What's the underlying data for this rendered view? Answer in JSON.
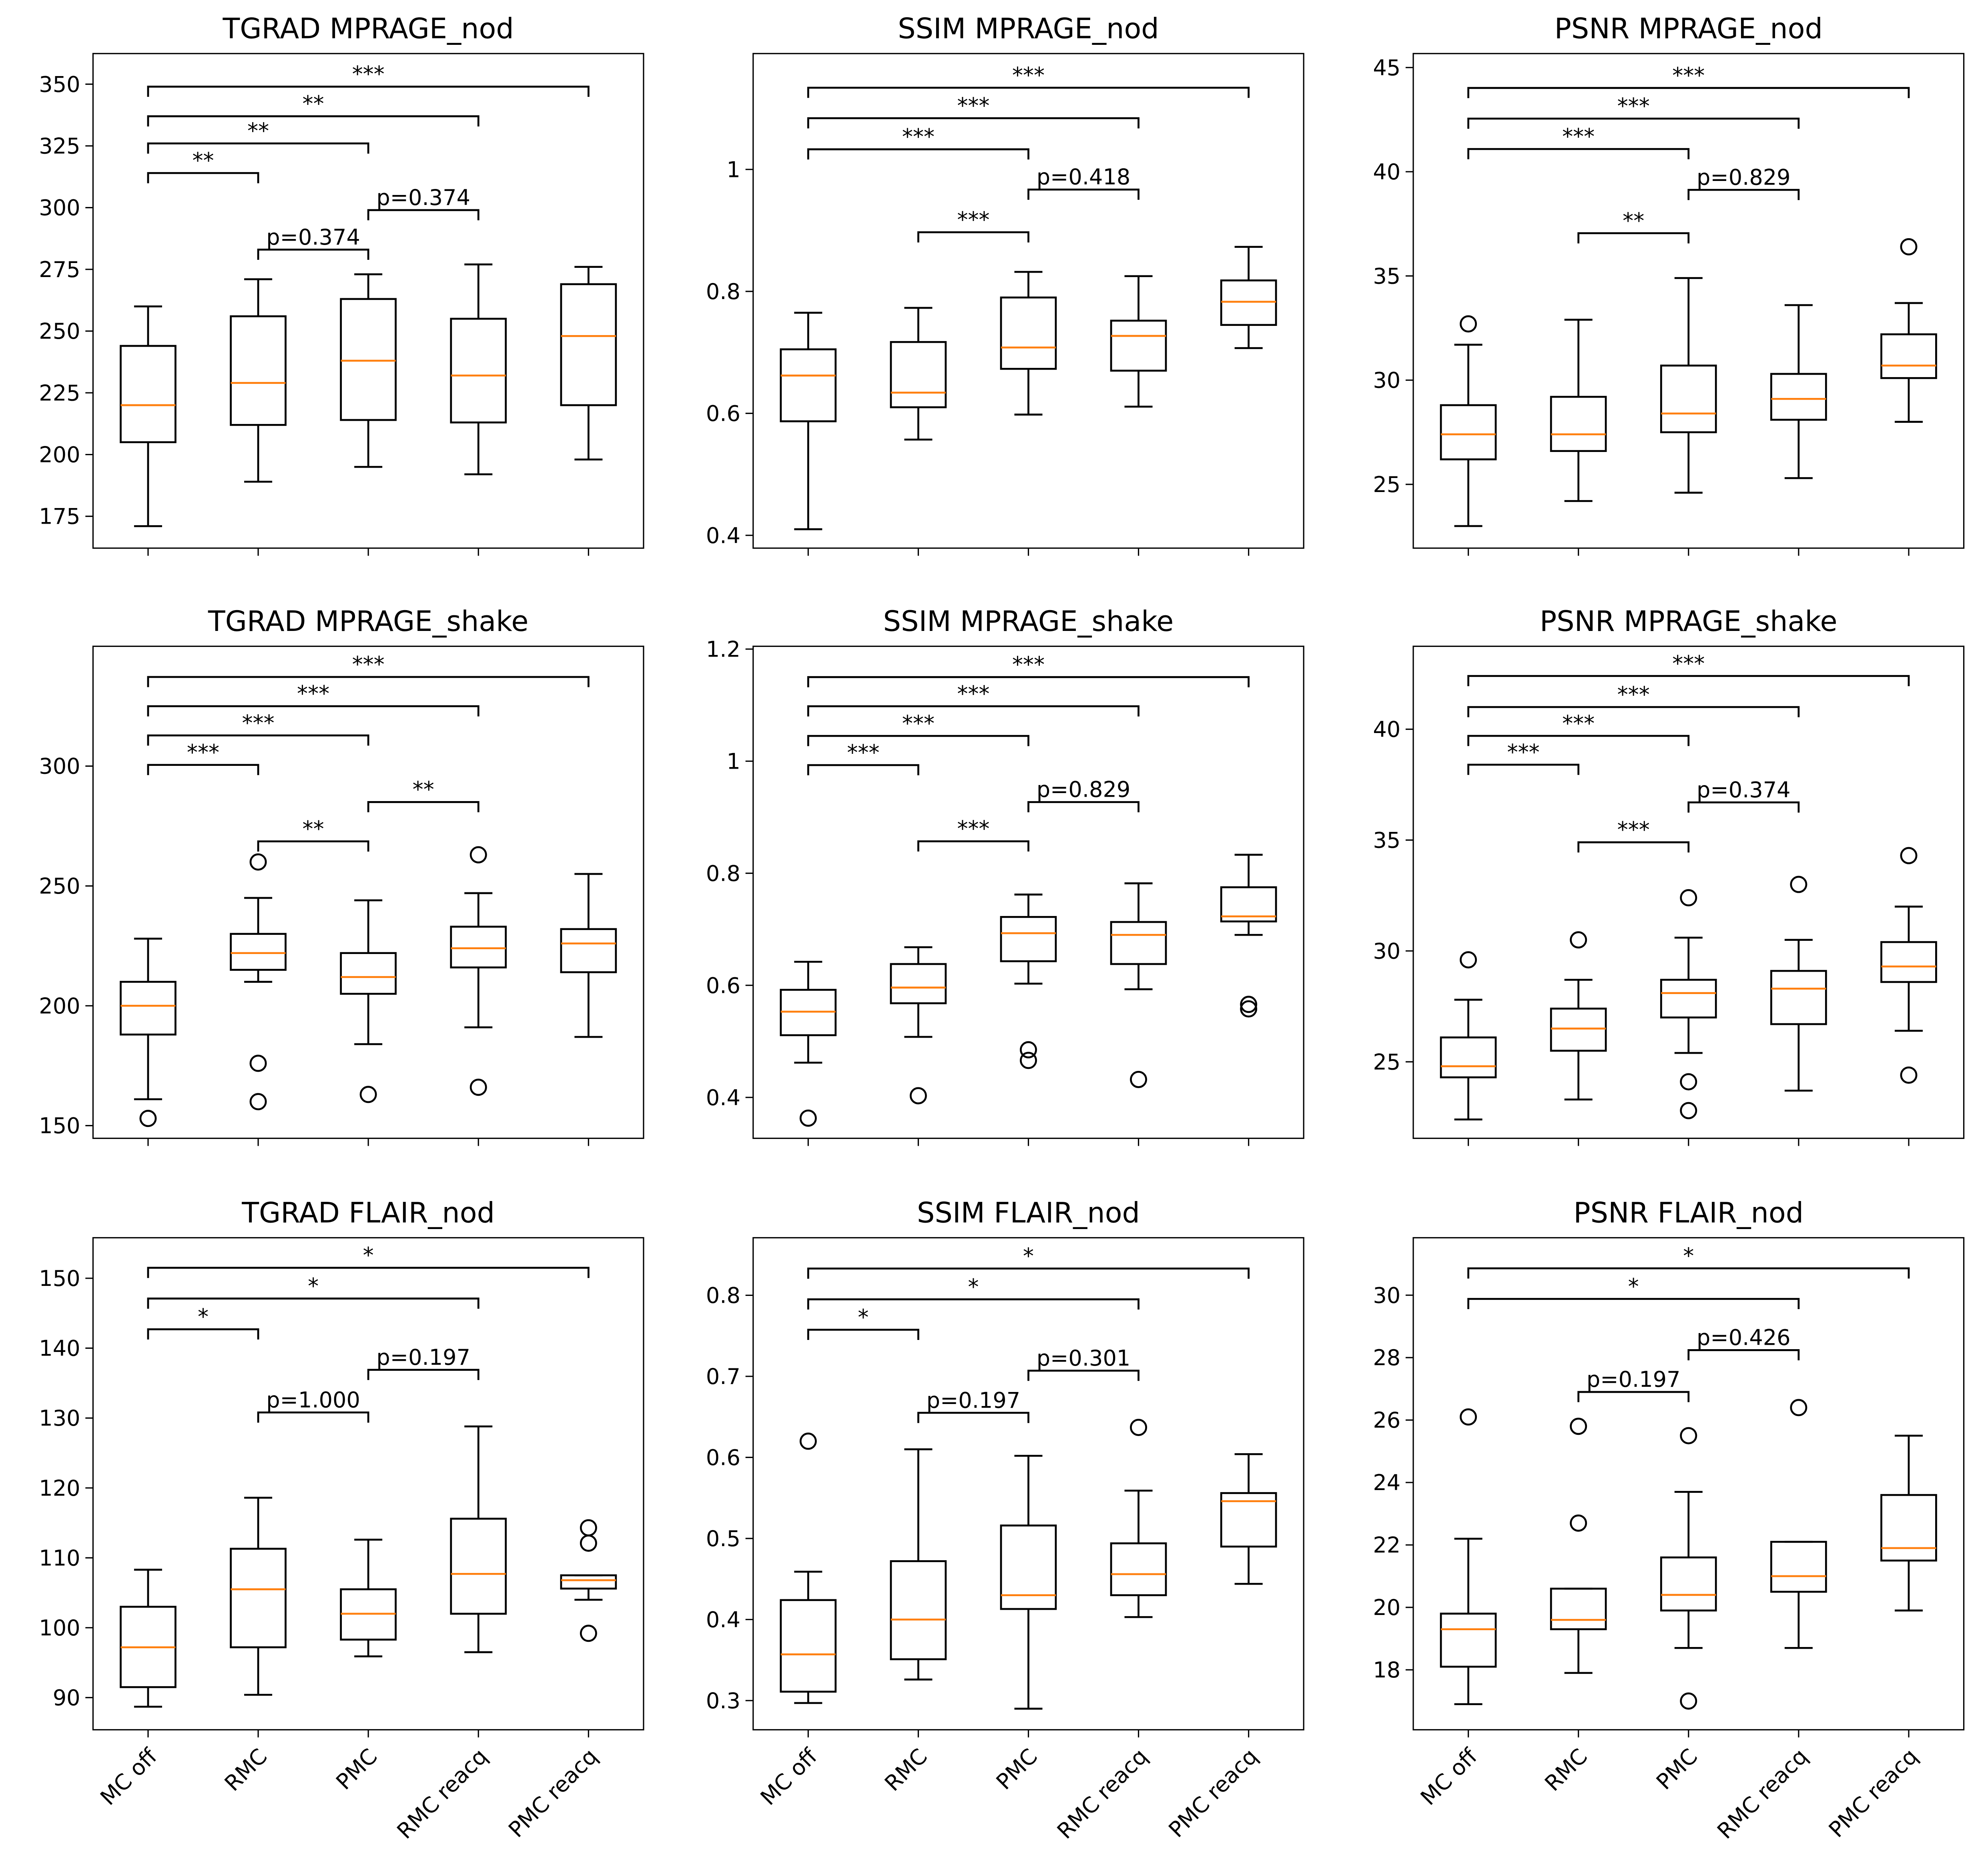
{
  "chart_data": {
    "type": "box",
    "categories": [
      "MC off",
      "RMC",
      "PMC",
      "RMC reacq",
      "PMC reacq"
    ],
    "colors": {
      "box": "#000000",
      "median": "#ff7f0e"
    },
    "panels": [
      {
        "title": "TGRAD MPRAGE_nod",
        "ylim": [
          162.1,
          362.4
        ],
        "yticks": [
          175,
          200,
          225,
          250,
          275,
          300,
          325,
          350
        ],
        "boxes": [
          {
            "whislo": 171,
            "q1": 205,
            "med": 220,
            "q3": 244,
            "whishi": 260,
            "fliers": []
          },
          {
            "whislo": 189,
            "q1": 212,
            "med": 229,
            "q3": 256,
            "whishi": 271,
            "fliers": []
          },
          {
            "whislo": 195,
            "q1": 214,
            "med": 238,
            "q3": 263,
            "whishi": 273,
            "fliers": []
          },
          {
            "whislo": 192,
            "q1": 213,
            "med": 232,
            "q3": 255,
            "whishi": 277,
            "fliers": []
          },
          {
            "whislo": 198,
            "q1": 220,
            "med": 248,
            "q3": 269,
            "whishi": 276,
            "fliers": []
          }
        ],
        "brackets": [
          {
            "from": 1,
            "to": 2,
            "y": 314,
            "label": "**"
          },
          {
            "from": 1,
            "to": 3,
            "y": 326,
            "label": "**"
          },
          {
            "from": 1,
            "to": 4,
            "y": 337,
            "label": "**"
          },
          {
            "from": 1,
            "to": 5,
            "y": 349,
            "label": "***"
          },
          {
            "from": 2,
            "to": 3,
            "y": 283,
            "label": "p=0.374"
          },
          {
            "from": 3,
            "to": 4,
            "y": 299,
            "label": "p=0.374"
          }
        ]
      },
      {
        "title": "SSIM MPRAGE_nod",
        "ylim": [
          0.379,
          1.19
        ],
        "yticks": [
          0.4,
          0.6,
          0.8,
          1.0
        ],
        "boxes": [
          {
            "whislo": 0.41,
            "q1": 0.587,
            "med": 0.662,
            "q3": 0.705,
            "whishi": 0.765,
            "fliers": []
          },
          {
            "whislo": 0.557,
            "q1": 0.61,
            "med": 0.634,
            "q3": 0.717,
            "whishi": 0.773,
            "fliers": []
          },
          {
            "whislo": 0.598,
            "q1": 0.673,
            "med": 0.708,
            "q3": 0.79,
            "whishi": 0.832,
            "fliers": []
          },
          {
            "whislo": 0.611,
            "q1": 0.67,
            "med": 0.727,
            "q3": 0.752,
            "whishi": 0.825,
            "fliers": []
          },
          {
            "whislo": 0.707,
            "q1": 0.745,
            "med": 0.783,
            "q3": 0.818,
            "whishi": 0.873,
            "fliers": []
          }
        ],
        "brackets": [
          {
            "from": 2,
            "to": 3,
            "y": 0.897,
            "label": "***"
          },
          {
            "from": 3,
            "to": 4,
            "y": 0.967,
            "label": "p=0.418"
          },
          {
            "from": 1,
            "to": 3,
            "y": 1.033,
            "label": "***"
          },
          {
            "from": 1,
            "to": 4,
            "y": 1.084,
            "label": "***"
          },
          {
            "from": 1,
            "to": 5,
            "y": 1.134,
            "label": "***"
          }
        ]
      },
      {
        "title": "PSNR MPRAGE_nod",
        "ylim": [
          21.94,
          45.67
        ],
        "yticks": [
          25,
          30,
          35,
          40,
          45
        ],
        "boxes": [
          {
            "whislo": 23,
            "q1": 26.2,
            "med": 27.4,
            "q3": 28.8,
            "whishi": 31.7,
            "fliers": [
              32.7
            ]
          },
          {
            "whislo": 24.2,
            "q1": 26.6,
            "med": 27.4,
            "q3": 29.2,
            "whishi": 32.9,
            "fliers": []
          },
          {
            "whislo": 24.6,
            "q1": 27.5,
            "med": 28.4,
            "q3": 30.7,
            "whishi": 34.9,
            "fliers": []
          },
          {
            "whislo": 25.3,
            "q1": 28.1,
            "med": 29.1,
            "q3": 30.3,
            "whishi": 33.6,
            "fliers": []
          },
          {
            "whislo": 28,
            "q1": 30.1,
            "med": 30.7,
            "q3": 32.2,
            "whishi": 33.7,
            "fliers": [
              36.4
            ]
          }
        ],
        "brackets": [
          {
            "from": 2,
            "to": 3,
            "y": 37.05,
            "label": "**"
          },
          {
            "from": 3,
            "to": 4,
            "y": 39.13,
            "label": "p=0.829"
          },
          {
            "from": 1,
            "to": 3,
            "y": 41.09,
            "label": "***"
          },
          {
            "from": 1,
            "to": 4,
            "y": 42.55,
            "label": "***"
          },
          {
            "from": 1,
            "to": 5,
            "y": 44.02,
            "label": "***"
          }
        ]
      },
      {
        "title": "TGRAD MPRAGE_shake",
        "ylim": [
          144.7,
          350
        ],
        "yticks": [
          150,
          200,
          250,
          300
        ],
        "boxes": [
          {
            "whislo": 161,
            "q1": 188,
            "med": 200,
            "q3": 210,
            "whishi": 228,
            "fliers": [
              153
            ]
          },
          {
            "whislo": 210,
            "q1": 215,
            "med": 222,
            "q3": 230,
            "whishi": 245,
            "fliers": [
              260,
              176,
              160
            ]
          },
          {
            "whislo": 184,
            "q1": 205,
            "med": 212,
            "q3": 222,
            "whishi": 244,
            "fliers": [
              163
            ]
          },
          {
            "whislo": 191,
            "q1": 216,
            "med": 224,
            "q3": 233,
            "whishi": 247,
            "fliers": [
              263,
              166
            ]
          },
          {
            "whislo": 187,
            "q1": 214,
            "med": 226,
            "q3": 232,
            "whishi": 255,
            "fliers": []
          }
        ],
        "brackets": [
          {
            "from": 1,
            "to": 2,
            "y": 300.5,
            "label": "***"
          },
          {
            "from": 1,
            "to": 3,
            "y": 312.8,
            "label": "***"
          },
          {
            "from": 1,
            "to": 4,
            "y": 325,
            "label": "***"
          },
          {
            "from": 1,
            "to": 5,
            "y": 337.2,
            "label": "***"
          },
          {
            "from": 2,
            "to": 3,
            "y": 268.6,
            "label": "**"
          },
          {
            "from": 3,
            "to": 4,
            "y": 285,
            "label": "**"
          }
        ]
      },
      {
        "title": "SSIM MPRAGE_shake",
        "ylim": [
          0.327,
          1.205
        ],
        "yticks": [
          0.4,
          0.6,
          0.8,
          1.0,
          1.2
        ],
        "boxes": [
          {
            "whislo": 0.462,
            "q1": 0.511,
            "med": 0.553,
            "q3": 0.592,
            "whishi": 0.642,
            "fliers": [
              0.363
            ]
          },
          {
            "whislo": 0.508,
            "q1": 0.568,
            "med": 0.596,
            "q3": 0.638,
            "whishi": 0.668,
            "fliers": [
              0.403
            ]
          },
          {
            "whislo": 0.603,
            "q1": 0.643,
            "med": 0.693,
            "q3": 0.722,
            "whishi": 0.762,
            "fliers": [
              0.485,
              0.466
            ]
          },
          {
            "whislo": 0.593,
            "q1": 0.638,
            "med": 0.69,
            "q3": 0.713,
            "whishi": 0.782,
            "fliers": [
              0.432
            ]
          },
          {
            "whislo": 0.69,
            "q1": 0.714,
            "med": 0.723,
            "q3": 0.775,
            "whishi": 0.833,
            "fliers": [
              0.566,
              0.558
            ]
          }
        ],
        "brackets": [
          {
            "from": 1,
            "to": 2,
            "y": 0.993,
            "label": "***"
          },
          {
            "from": 1,
            "to": 3,
            "y": 1.045,
            "label": "***"
          },
          {
            "from": 1,
            "to": 4,
            "y": 1.098,
            "label": "***"
          },
          {
            "from": 1,
            "to": 5,
            "y": 1.15,
            "label": "***"
          },
          {
            "from": 2,
            "to": 3,
            "y": 0.857,
            "label": "***"
          },
          {
            "from": 3,
            "to": 4,
            "y": 0.927,
            "label": "p=0.829"
          }
        ]
      },
      {
        "title": "PSNR MPRAGE_shake",
        "ylim": [
          21.55,
          43.74
        ],
        "yticks": [
          25,
          30,
          35,
          40
        ],
        "boxes": [
          {
            "whislo": 22.4,
            "q1": 24.3,
            "med": 24.8,
            "q3": 26.1,
            "whishi": 27.8,
            "fliers": [
              29.6
            ]
          },
          {
            "whislo": 23.3,
            "q1": 25.5,
            "med": 26.5,
            "q3": 27.4,
            "whishi": 28.7,
            "fliers": [
              30.5
            ]
          },
          {
            "whislo": 25.4,
            "q1": 27,
            "med": 28.1,
            "q3": 28.7,
            "whishi": 30.6,
            "fliers": [
              32.4,
              24.1,
              22.8
            ]
          },
          {
            "whislo": 23.7,
            "q1": 26.7,
            "med": 28.3,
            "q3": 29.1,
            "whishi": 30.5,
            "fliers": [
              33
            ]
          },
          {
            "whislo": 26.4,
            "q1": 28.6,
            "med": 29.3,
            "q3": 30.4,
            "whishi": 32,
            "fliers": [
              34.3,
              24.4
            ]
          }
        ],
        "brackets": [
          {
            "from": 1,
            "to": 2,
            "y": 38.4,
            "label": "***"
          },
          {
            "from": 1,
            "to": 3,
            "y": 39.7,
            "label": "***"
          },
          {
            "from": 1,
            "to": 4,
            "y": 41.0,
            "label": "***"
          },
          {
            "from": 1,
            "to": 5,
            "y": 42.4,
            "label": "***"
          },
          {
            "from": 2,
            "to": 3,
            "y": 34.9,
            "label": "***"
          },
          {
            "from": 3,
            "to": 4,
            "y": 36.7,
            "label": "p=0.374"
          }
        ]
      },
      {
        "title": "TGRAD FLAIR_nod",
        "ylim": [
          85.4,
          155.8
        ],
        "yticks": [
          90,
          100,
          110,
          120,
          130,
          140,
          150
        ],
        "boxes": [
          {
            "whislo": 88.7,
            "q1": 91.5,
            "med": 97.2,
            "q3": 103,
            "whishi": 108.3,
            "fliers": []
          },
          {
            "whislo": 90.4,
            "q1": 97.2,
            "med": 105.5,
            "q3": 111.3,
            "whishi": 118.6,
            "fliers": []
          },
          {
            "whislo": 95.9,
            "q1": 98.3,
            "med": 102,
            "q3": 105.5,
            "whishi": 112.6,
            "fliers": []
          },
          {
            "whislo": 96.5,
            "q1": 102,
            "med": 107.7,
            "q3": 115.6,
            "whishi": 128.8,
            "fliers": []
          },
          {
            "whislo": 104,
            "q1": 105.6,
            "med": 106.8,
            "q3": 107.5,
            "whishi": 107.5,
            "fliers": [
              114.3,
              112.1,
              99.2
            ]
          }
        ],
        "brackets": [
          {
            "from": 1,
            "to": 2,
            "y": 142.7,
            "label": "*"
          },
          {
            "from": 1,
            "to": 4,
            "y": 147.1,
            "label": "*"
          },
          {
            "from": 1,
            "to": 5,
            "y": 151.5,
            "label": "*"
          },
          {
            "from": 2,
            "to": 3,
            "y": 130.8,
            "label": "p=1.000"
          },
          {
            "from": 3,
            "to": 4,
            "y": 136.9,
            "label": "p=0.197"
          }
        ]
      },
      {
        "title": "SSIM FLAIR_nod",
        "ylim": [
          0.264,
          0.871
        ],
        "yticks": [
          0.3,
          0.4,
          0.5,
          0.6,
          0.7,
          0.8
        ],
        "boxes": [
          {
            "whislo": 0.297,
            "q1": 0.311,
            "med": 0.357,
            "q3": 0.424,
            "whishi": 0.459,
            "fliers": [
              0.62
            ]
          },
          {
            "whislo": 0.326,
            "q1": 0.351,
            "med": 0.4,
            "q3": 0.472,
            "whishi": 0.61,
            "fliers": []
          },
          {
            "whislo": 0.29,
            "q1": 0.413,
            "med": 0.43,
            "q3": 0.516,
            "whishi": 0.602,
            "fliers": []
          },
          {
            "whislo": 0.403,
            "q1": 0.43,
            "med": 0.456,
            "q3": 0.494,
            "whishi": 0.559,
            "fliers": [
              0.637
            ]
          },
          {
            "whislo": 0.444,
            "q1": 0.49,
            "med": 0.546,
            "q3": 0.556,
            "whishi": 0.604,
            "fliers": []
          }
        ],
        "brackets": [
          {
            "from": 1,
            "to": 2,
            "y": 0.7575,
            "label": "*"
          },
          {
            "from": 1,
            "to": 4,
            "y": 0.795,
            "label": "*"
          },
          {
            "from": 1,
            "to": 5,
            "y": 0.833,
            "label": "*"
          },
          {
            "from": 2,
            "to": 3,
            "y": 0.655,
            "label": "p=0.197"
          },
          {
            "from": 3,
            "to": 4,
            "y": 0.707,
            "label": "p=0.301"
          }
        ]
      },
      {
        "title": "PSNR FLAIR_nod",
        "ylim": [
          16.08,
          31.84
        ],
        "yticks": [
          18,
          20,
          22,
          24,
          26,
          28,
          30
        ],
        "boxes": [
          {
            "whislo": 16.9,
            "q1": 18.1,
            "med": 19.3,
            "q3": 19.8,
            "whishi": 22.2,
            "fliers": [
              26.1
            ]
          },
          {
            "whislo": 17.9,
            "q1": 19.3,
            "med": 19.6,
            "q3": 20.6,
            "whishi": 20.6,
            "fliers": [
              25.8,
              22.7
            ]
          },
          {
            "whislo": 18.7,
            "q1": 19.9,
            "med": 20.4,
            "q3": 21.6,
            "whishi": 23.7,
            "fliers": [
              25.5,
              17.0
            ]
          },
          {
            "whislo": 18.7,
            "q1": 20.5,
            "med": 21,
            "q3": 22.1,
            "whishi": 22.1,
            "fliers": [
              26.4
            ]
          },
          {
            "whislo": 19.9,
            "q1": 21.5,
            "med": 21.9,
            "q3": 23.6,
            "whishi": 25.5,
            "fliers": []
          }
        ],
        "brackets": [
          {
            "from": 1,
            "to": 4,
            "y": 29.88,
            "label": "*"
          },
          {
            "from": 1,
            "to": 5,
            "y": 30.86,
            "label": "*"
          },
          {
            "from": 2,
            "to": 3,
            "y": 26.9,
            "label": "p=0.197"
          },
          {
            "from": 3,
            "to": 4,
            "y": 28.24,
            "label": "p=0.426"
          }
        ]
      }
    ]
  }
}
